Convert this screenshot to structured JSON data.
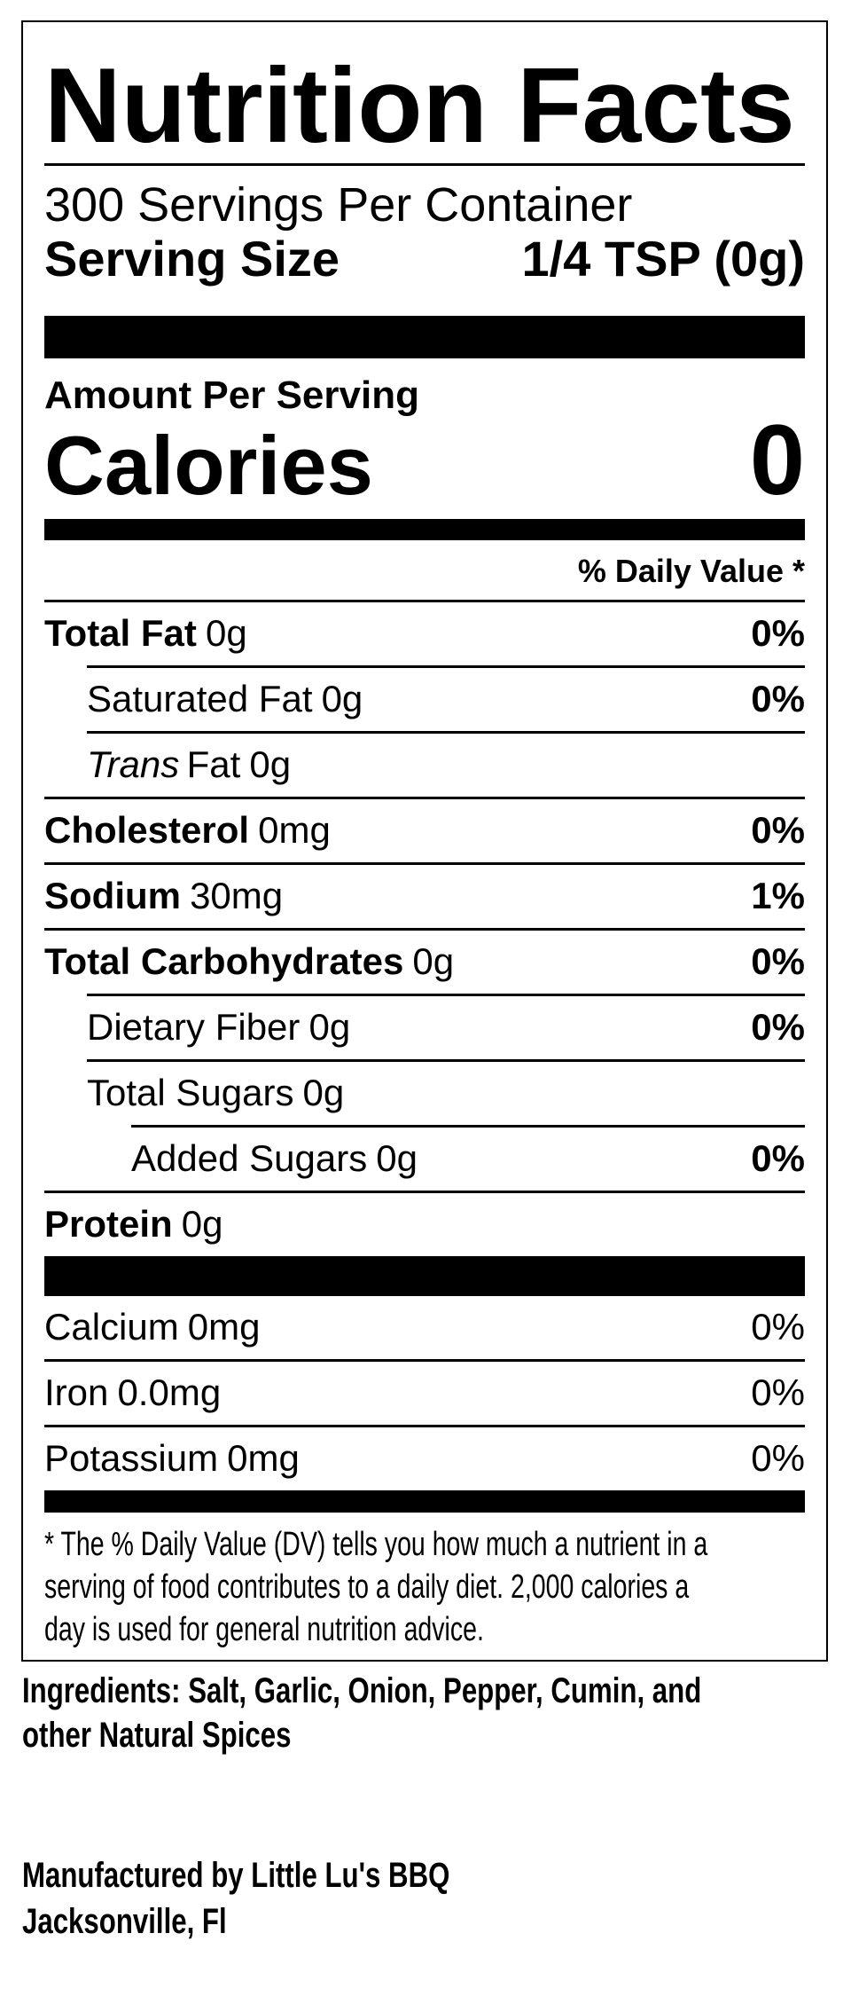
{
  "label": {
    "title": "Nutrition Facts",
    "servings_per_container": "300 Servings Per Container",
    "serving_size": {
      "label": "Serving Size",
      "value": "1/4 TSP (0g)"
    },
    "amount_per_serving": "Amount Per Serving",
    "calories": {
      "label": "Calories",
      "value": "0"
    },
    "daily_value_header": "% Daily Value *",
    "nutrients": [
      {
        "name": "Total Fat",
        "amount": "0g",
        "dv": "0%",
        "bold_name": true,
        "bold_dv": true,
        "indent": 0,
        "sep": true
      },
      {
        "name": "Saturated Fat",
        "amount": "0g",
        "dv": "0%",
        "bold_name": false,
        "bold_dv": true,
        "indent": 1,
        "sep": true
      },
      {
        "it": "Trans",
        "name": "Fat",
        "amount": "0g",
        "dv": "",
        "bold_name": false,
        "bold_dv": false,
        "indent": 1,
        "sep": true
      },
      {
        "name": "Cholesterol",
        "amount": "0mg",
        "dv": "0%",
        "bold_name": true,
        "bold_dv": true,
        "indent": 0,
        "sep": true
      },
      {
        "name": "Sodium",
        "amount": "30mg",
        "dv": "1%",
        "bold_name": true,
        "bold_dv": true,
        "indent": 0,
        "sep": true
      },
      {
        "name": "Total Carbohydrates",
        "amount": "0g",
        "dv": "0%",
        "bold_name": true,
        "bold_dv": true,
        "indent": 0,
        "sep": true
      },
      {
        "name": "Dietary Fiber",
        "amount": "0g",
        "dv": "0%",
        "bold_name": false,
        "bold_dv": true,
        "indent": 1,
        "sep": true
      },
      {
        "name": "Total Sugars",
        "amount": "0g",
        "dv": "",
        "bold_name": false,
        "bold_dv": false,
        "indent": 1,
        "sep": true
      },
      {
        "name": "Added Sugars",
        "amount": "0g",
        "dv": "0%",
        "bold_name": false,
        "bold_dv": true,
        "indent": 2,
        "sep": true
      },
      {
        "name": "Protein",
        "amount": "0g",
        "dv": "",
        "bold_name": true,
        "bold_dv": false,
        "indent": 0,
        "sep": true
      }
    ],
    "minerals": [
      {
        "name": "Calcium",
        "amount": "0mg",
        "dv": "0%",
        "bold_name": false,
        "bold_dv": false,
        "indent": 0,
        "sep": false
      },
      {
        "name": "Iron",
        "amount": "0.0mg",
        "dv": "0%",
        "bold_name": false,
        "bold_dv": false,
        "indent": 0,
        "sep": true
      },
      {
        "name": "Potassium",
        "amount": "0mg",
        "dv": "0%",
        "bold_name": false,
        "bold_dv": false,
        "indent": 0,
        "sep": true
      }
    ],
    "footnote_lines": [
      "* The % Daily Value (DV) tells you how much a nutrient in a",
      "serving of food contributes to a daily diet. 2,000 calories a",
      "day is used for general nutrition advice."
    ]
  },
  "ingredients_lines": [
    "Ingredients: Salt, Garlic, Onion, Pepper, Cumin, and",
    "other Natural Spices"
  ],
  "manufacturer_lines": [
    "Manufactured by Little Lu's BBQ",
    "Jacksonville, Fl"
  ],
  "colors": {
    "ink": "#000000",
    "background": "#ffffff"
  }
}
